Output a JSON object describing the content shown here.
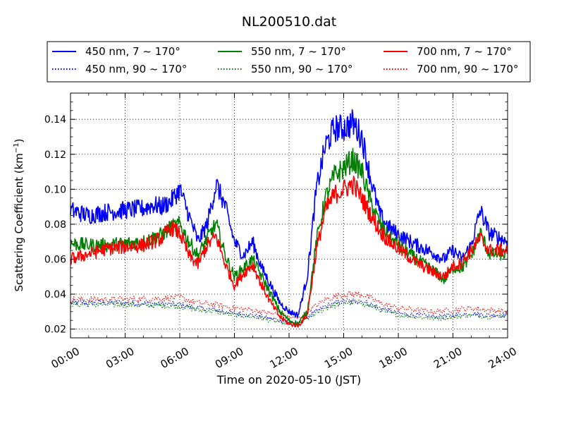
{
  "chart_data": {
    "type": "line",
    "title": "NL200510.dat",
    "xlabel": "Time on 2020-05-10 (JST)",
    "ylabel_main": "Scattering Coefficient (km",
    "ylabel_exp": "−1",
    "ylabel_close": ")",
    "xlim": [
      "00:00",
      "24:00"
    ],
    "ylim": [
      0.015,
      0.155
    ],
    "grid": true,
    "legend_position": "top",
    "x_ticks": [
      "00:00",
      "03:00",
      "06:00",
      "09:00",
      "12:00",
      "15:00",
      "18:00",
      "21:00",
      "24:00"
    ],
    "y_ticks": [
      "0.02",
      "0.04",
      "0.06",
      "0.08",
      "0.10",
      "0.12",
      "0.14"
    ],
    "series": [
      {
        "name": "450 nm, 7 ~ 170°",
        "color": "#0000ff",
        "style": "solid",
        "x": [
          "00:00",
          "01:00",
          "02:00",
          "03:00",
          "04:00",
          "04:30",
          "05:00",
          "05:30",
          "06:00",
          "06:30",
          "07:00",
          "07:30",
          "08:00",
          "08:30",
          "09:00",
          "09:30",
          "10:00",
          "10:30",
          "11:00",
          "11:30",
          "12:00",
          "12:30",
          "13:00",
          "13:30",
          "14:00",
          "14:30",
          "15:00",
          "15:30",
          "16:00",
          "16:30",
          "17:00",
          "17:30",
          "18:00",
          "19:00",
          "20:00",
          "20:30",
          "21:00",
          "21:30",
          "22:00",
          "22:30",
          "23:00",
          "24:00"
        ],
        "y": [
          0.088,
          0.085,
          0.087,
          0.088,
          0.089,
          0.091,
          0.09,
          0.093,
          0.1,
          0.085,
          0.07,
          0.08,
          0.103,
          0.09,
          0.07,
          0.062,
          0.07,
          0.055,
          0.045,
          0.035,
          0.03,
          0.028,
          0.05,
          0.1,
          0.125,
          0.135,
          0.135,
          0.138,
          0.13,
          0.105,
          0.085,
          0.078,
          0.074,
          0.068,
          0.063,
          0.06,
          0.065,
          0.06,
          0.068,
          0.088,
          0.075,
          0.07
        ]
      },
      {
        "name": "550 nm, 7 ~ 170°",
        "color": "#008000",
        "style": "solid",
        "x": [
          "00:00",
          "01:00",
          "02:00",
          "03:00",
          "04:00",
          "05:00",
          "05:30",
          "06:00",
          "06:30",
          "07:00",
          "07:30",
          "08:00",
          "08:30",
          "09:00",
          "09:30",
          "10:00",
          "10:30",
          "11:00",
          "11:30",
          "12:00",
          "12:30",
          "13:00",
          "13:30",
          "14:00",
          "14:30",
          "15:00",
          "15:30",
          "16:00",
          "16:30",
          "17:00",
          "17:30",
          "18:00",
          "19:00",
          "20:00",
          "20:30",
          "21:00",
          "21:30",
          "22:00",
          "22:30",
          "23:00",
          "24:00"
        ],
        "y": [
          0.069,
          0.068,
          0.068,
          0.069,
          0.07,
          0.074,
          0.078,
          0.08,
          0.07,
          0.062,
          0.072,
          0.08,
          0.062,
          0.05,
          0.055,
          0.06,
          0.05,
          0.04,
          0.03,
          0.025,
          0.023,
          0.03,
          0.07,
          0.095,
          0.108,
          0.112,
          0.117,
          0.11,
          0.092,
          0.08,
          0.072,
          0.068,
          0.06,
          0.053,
          0.048,
          0.055,
          0.055,
          0.062,
          0.075,
          0.063,
          0.063
        ]
      },
      {
        "name": "700 nm, 7 ~ 170°",
        "color": "#ff0000",
        "style": "solid",
        "x": [
          "00:00",
          "01:00",
          "02:00",
          "03:00",
          "04:00",
          "05:00",
          "05:30",
          "06:00",
          "06:30",
          "07:00",
          "07:30",
          "08:00",
          "08:30",
          "09:00",
          "09:30",
          "10:00",
          "10:30",
          "11:00",
          "11:30",
          "12:00",
          "12:30",
          "13:00",
          "13:30",
          "14:00",
          "14:30",
          "15:00",
          "15:30",
          "16:00",
          "16:30",
          "17:00",
          "17:30",
          "18:00",
          "19:00",
          "20:00",
          "20:30",
          "21:00",
          "21:30",
          "22:00",
          "22:30",
          "23:00",
          "24:00"
        ],
        "y": [
          0.06,
          0.063,
          0.066,
          0.067,
          0.068,
          0.072,
          0.078,
          0.075,
          0.062,
          0.057,
          0.068,
          0.073,
          0.057,
          0.045,
          0.052,
          0.057,
          0.045,
          0.035,
          0.027,
          0.023,
          0.022,
          0.028,
          0.065,
          0.088,
          0.097,
          0.1,
          0.103,
          0.095,
          0.085,
          0.076,
          0.07,
          0.066,
          0.058,
          0.052,
          0.05,
          0.056,
          0.058,
          0.065,
          0.072,
          0.065,
          0.065
        ]
      },
      {
        "name": "450 nm, 90 ~ 170°",
        "color": "#0000ff",
        "style": "dotted",
        "x": [
          "00:00",
          "03:00",
          "06:00",
          "07:00",
          "08:00",
          "09:00",
          "10:00",
          "11:00",
          "12:00",
          "12:30",
          "13:00",
          "14:00",
          "15:00",
          "16:00",
          "17:00",
          "18:00",
          "20:00",
          "21:00",
          "22:00",
          "23:00",
          "24:00"
        ],
        "y": [
          0.035,
          0.035,
          0.034,
          0.032,
          0.031,
          0.029,
          0.028,
          0.026,
          0.024,
          0.023,
          0.027,
          0.033,
          0.036,
          0.036,
          0.032,
          0.029,
          0.027,
          0.028,
          0.029,
          0.028,
          0.028
        ]
      },
      {
        "name": "550 nm, 90 ~ 170°",
        "color": "#008000",
        "style": "dotted",
        "x": [
          "00:00",
          "03:00",
          "06:00",
          "07:00",
          "08:00",
          "09:00",
          "10:00",
          "11:00",
          "12:00",
          "12:30",
          "13:00",
          "14:00",
          "15:00",
          "16:00",
          "17:00",
          "18:00",
          "20:00",
          "21:00",
          "22:00",
          "23:00",
          "24:00"
        ],
        "y": [
          0.034,
          0.034,
          0.033,
          0.031,
          0.03,
          0.028,
          0.027,
          0.025,
          0.023,
          0.022,
          0.026,
          0.032,
          0.035,
          0.035,
          0.031,
          0.028,
          0.026,
          0.027,
          0.028,
          0.027,
          0.028
        ]
      },
      {
        "name": "700 nm, 90 ~ 170°",
        "color": "#ff0000",
        "style": "dotted",
        "x": [
          "00:00",
          "03:00",
          "06:00",
          "07:00",
          "08:00",
          "09:00",
          "10:00",
          "11:00",
          "12:00",
          "12:30",
          "13:00",
          "14:00",
          "15:00",
          "16:00",
          "17:00",
          "18:00",
          "20:00",
          "21:00",
          "22:00",
          "23:00",
          "24:00"
        ],
        "y": [
          0.037,
          0.037,
          0.038,
          0.035,
          0.034,
          0.032,
          0.031,
          0.029,
          0.027,
          0.026,
          0.03,
          0.037,
          0.04,
          0.04,
          0.035,
          0.032,
          0.03,
          0.031,
          0.032,
          0.031,
          0.03
        ]
      }
    ]
  }
}
